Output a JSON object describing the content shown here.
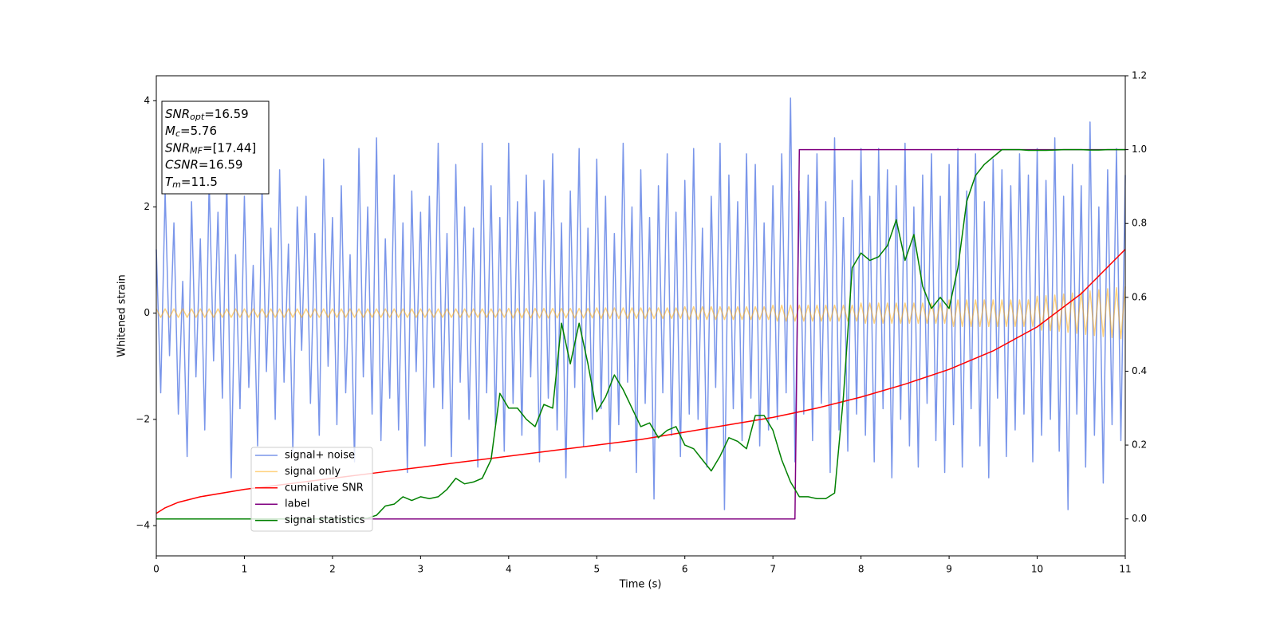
{
  "chart_data": {
    "type": "line",
    "xlabel": "Time (s)",
    "ylabel": "Whitened strain",
    "xlim": [
      0,
      11
    ],
    "xticks": [
      0,
      1,
      2,
      3,
      4,
      5,
      6,
      7,
      8,
      9,
      10,
      11
    ],
    "ylim": [
      -4.57,
      4.47
    ],
    "yticks": [
      {
        "value": -4,
        "label": "−4"
      },
      {
        "value": -2,
        "label": "−2"
      },
      0,
      2,
      4
    ],
    "y2lim": [
      -0.1,
      1.2
    ],
    "y2ticks": [
      {
        "value": 0,
        "label": "0.0"
      },
      0.2,
      0.4,
      0.6,
      0.8,
      {
        "value": 1,
        "label": "1.0"
      },
      1.2
    ],
    "legend": "best",
    "annotation": [
      {
        "text": "SNR",
        "sub": "opt",
        "tail": "=16.59"
      },
      {
        "text": "M",
        "sub": "c",
        "tail": "=5.76"
      },
      {
        "text": "SNR",
        "sub": "MF",
        "tail": "=[17.44]"
      },
      {
        "text": "CSNR",
        "tail": "=16.59"
      },
      {
        "text": "T",
        "sub": "m",
        "tail": "=11.5"
      }
    ],
    "x": [
      0,
      0.05,
      0.1,
      0.15,
      0.2,
      0.25,
      0.3,
      0.35,
      0.4,
      0.45,
      0.5,
      0.55,
      0.6,
      0.65,
      0.7,
      0.75,
      0.8,
      0.85,
      0.9,
      0.95,
      1,
      1.05,
      1.1,
      1.15,
      1.2,
      1.25,
      1.3,
      1.35,
      1.4,
      1.45,
      1.5,
      1.55,
      1.6,
      1.65,
      1.7,
      1.75,
      1.8,
      1.85,
      1.9,
      1.95,
      2,
      2.05,
      2.1,
      2.15,
      2.2,
      2.25,
      2.3,
      2.35,
      2.4,
      2.45,
      2.5,
      2.55,
      2.6,
      2.65,
      2.7,
      2.75,
      2.8,
      2.85,
      2.9,
      2.95,
      3,
      3.05,
      3.1,
      3.15,
      3.2,
      3.25,
      3.3,
      3.35,
      3.4,
      3.45,
      3.5,
      3.55,
      3.6,
      3.65,
      3.7,
      3.75,
      3.8,
      3.85,
      3.9,
      3.95,
      4,
      4.05,
      4.1,
      4.15,
      4.2,
      4.25,
      4.3,
      4.35,
      4.4,
      4.45,
      4.5,
      4.55,
      4.6,
      4.65,
      4.7,
      4.75,
      4.8,
      4.85,
      4.9,
      4.95,
      5,
      5.05,
      5.1,
      5.15,
      5.2,
      5.25,
      5.3,
      5.35,
      5.4,
      5.45,
      5.5,
      5.55,
      5.6,
      5.65,
      5.7,
      5.75,
      5.8,
      5.85,
      5.9,
      5.95,
      6,
      6.05,
      6.1,
      6.15,
      6.2,
      6.25,
      6.3,
      6.35,
      6.4,
      6.45,
      6.5,
      6.55,
      6.6,
      6.65,
      6.7,
      6.75,
      6.8,
      6.85,
      6.9,
      6.95,
      7,
      7.05,
      7.1,
      7.15,
      7.2,
      7.25,
      7.3,
      7.35,
      7.4,
      7.45,
      7.5,
      7.55,
      7.6,
      7.65,
      7.7,
      7.75,
      7.8,
      7.85,
      7.9,
      7.95,
      8,
      8.05,
      8.1,
      8.15,
      8.2,
      8.25,
      8.3,
      8.35,
      8.4,
      8.45,
      8.5,
      8.55,
      8.6,
      8.65,
      8.7,
      8.75,
      8.8,
      8.85,
      8.9,
      8.95,
      9,
      9.05,
      9.1,
      9.15,
      9.2,
      9.25,
      9.3,
      9.35,
      9.4,
      9.45,
      9.5,
      9.55,
      9.6,
      9.65,
      9.7,
      9.75,
      9.8,
      9.85,
      9.9,
      9.95,
      10,
      10.05,
      10.1,
      10.15,
      10.2,
      10.25,
      10.3,
      10.35,
      10.4,
      10.45,
      10.5,
      10.55,
      10.6,
      10.65,
      10.7,
      10.75,
      10.8,
      10.85,
      10.9,
      10.95,
      11
    ],
    "series": [
      {
        "name": "signal+ noise",
        "color": "#4169e1",
        "alpha": 0.7,
        "axis": "y",
        "values": [
          1.2,
          -1.5,
          2.3,
          -0.8,
          1.7,
          -1.9,
          0.6,
          -2.7,
          2.1,
          -1.2,
          1.4,
          -2.2,
          2.5,
          -0.9,
          1.9,
          -1.6,
          2.6,
          -3.1,
          1.1,
          -1.8,
          2.2,
          -1.4,
          0.9,
          -2.5,
          2.4,
          -1.1,
          1.6,
          -2.0,
          2.7,
          -1.3,
          1.3,
          -2.6,
          2.0,
          -0.7,
          2.2,
          -1.7,
          1.5,
          -2.3,
          2.9,
          -1.0,
          1.8,
          -2.1,
          2.4,
          -1.5,
          1.1,
          -2.8,
          3.1,
          -1.2,
          2.0,
          -1.9,
          3.3,
          -2.4,
          1.4,
          -1.6,
          2.6,
          -2.2,
          1.7,
          -3.0,
          2.3,
          -1.1,
          1.9,
          -2.5,
          2.2,
          -1.4,
          3.2,
          -1.8,
          1.5,
          -2.7,
          2.8,
          -1.3,
          2.0,
          -2.0,
          1.6,
          -2.9,
          3.2,
          -1.5,
          2.4,
          -2.1,
          1.8,
          -2.6,
          3.2,
          -1.7,
          2.1,
          -2.3,
          2.6,
          -1.2,
          1.9,
          -2.8,
          2.5,
          -1.6,
          3.0,
          -2.2,
          1.7,
          -3.1,
          2.3,
          -1.4,
          3.1,
          -2.5,
          1.6,
          -2.0,
          2.9,
          -1.8,
          2.2,
          -2.6,
          1.5,
          -2.1,
          3.2,
          -1.3,
          2.0,
          -3.0,
          2.7,
          -1.7,
          1.8,
          -3.5,
          2.4,
          -1.5,
          3.0,
          -2.3,
          1.9,
          -2.7,
          2.5,
          -1.9,
          3.1,
          -2.0,
          1.6,
          -2.9,
          2.2,
          -1.4,
          3.2,
          -3.7,
          2.6,
          -1.8,
          2.1,
          -2.4,
          3.0,
          -1.6,
          2.8,
          -2.5,
          1.7,
          -2.2,
          2.4,
          -2.0,
          3.0,
          -1.5,
          4.05,
          -2.8,
          2.3,
          -1.9,
          2.6,
          -2.4,
          3.0,
          -1.7,
          2.1,
          -3.0,
          3.3,
          -2.2,
          1.8,
          -2.6,
          2.5,
          -1.9,
          3.1,
          -2.3,
          2.2,
          -2.8,
          3.1,
          -1.8,
          2.7,
          -3.1,
          2.4,
          -2.0,
          3.2,
          -2.5,
          2.0,
          -2.9,
          2.6,
          -1.7,
          3.0,
          -2.4,
          2.2,
          -3.0,
          2.8,
          -2.1,
          3.1,
          -2.9,
          2.3,
          -1.8,
          3.0,
          -2.5,
          2.1,
          -3.1,
          2.9,
          -1.6,
          2.7,
          -2.7,
          2.4,
          -2.2,
          3.0,
          -1.9,
          2.6,
          -2.8,
          3.1,
          -2.3,
          2.5,
          -2.0,
          3.3,
          -2.6,
          2.2,
          -3.7,
          2.8,
          -1.9,
          2.4,
          -2.9,
          3.6,
          -2.3,
          2.0,
          -3.2,
          2.7,
          -2.1,
          3.1,
          -2.4,
          2.6
        ]
      },
      {
        "name": "signal only",
        "color": "#ffa500",
        "alpha": 0.5,
        "axis": "y",
        "values": [
          0.08,
          -0.08,
          0.08,
          -0.08,
          0.08,
          -0.08,
          0.08,
          -0.08,
          0.08,
          -0.08,
          0.08,
          -0.08,
          0.08,
          -0.08,
          0.08,
          -0.08,
          0.08,
          -0.08,
          0.08,
          -0.08,
          0.08,
          -0.08,
          0.08,
          -0.08,
          0.08,
          -0.08,
          0.08,
          -0.08,
          0.08,
          -0.08,
          0.08,
          -0.08,
          0.08,
          -0.08,
          0.08,
          -0.08,
          0.08,
          -0.08,
          0.08,
          -0.08,
          0.08,
          -0.08,
          0.08,
          -0.08,
          0.08,
          -0.08,
          0.08,
          -0.08,
          0.08,
          -0.08,
          0.08,
          -0.08,
          0.08,
          -0.08,
          0.08,
          -0.08,
          0.08,
          -0.08,
          0.08,
          -0.08,
          0.08,
          -0.08,
          0.08,
          -0.08,
          0.08,
          -0.08,
          0.08,
          -0.08,
          0.08,
          -0.08,
          0.08,
          -0.08,
          0.08,
          -0.08,
          0.08,
          -0.08,
          0.08,
          -0.08,
          0.08,
          -0.08,
          0.09,
          -0.09,
          0.09,
          -0.09,
          0.09,
          -0.09,
          0.09,
          -0.09,
          0.09,
          -0.09,
          0.09,
          -0.09,
          0.09,
          -0.09,
          0.09,
          -0.09,
          0.09,
          -0.09,
          0.09,
          -0.09,
          0.1,
          -0.1,
          0.1,
          -0.1,
          0.1,
          -0.1,
          0.1,
          -0.1,
          0.1,
          -0.1,
          0.1,
          -0.1,
          0.1,
          -0.1,
          0.1,
          -0.1,
          0.1,
          -0.1,
          0.1,
          -0.1,
          0.12,
          -0.12,
          0.12,
          -0.12,
          0.12,
          -0.12,
          0.12,
          -0.12,
          0.12,
          -0.12,
          0.12,
          -0.12,
          0.12,
          -0.12,
          0.12,
          -0.12,
          0.12,
          -0.12,
          0.12,
          -0.12,
          0.15,
          -0.15,
          0.15,
          -0.15,
          0.15,
          -0.15,
          0.15,
          -0.15,
          0.15,
          -0.15,
          0.15,
          -0.15,
          0.15,
          -0.15,
          0.15,
          -0.15,
          0.15,
          -0.15,
          0.15,
          -0.15,
          0.19,
          -0.19,
          0.19,
          -0.19,
          0.19,
          -0.19,
          0.19,
          -0.19,
          0.19,
          -0.19,
          0.19,
          -0.19,
          0.19,
          -0.19,
          0.19,
          -0.19,
          0.19,
          -0.19,
          0.19,
          -0.19,
          0.25,
          -0.25,
          0.25,
          -0.25,
          0.25,
          -0.25,
          0.25,
          -0.25,
          0.25,
          -0.25,
          0.25,
          -0.25,
          0.25,
          -0.25,
          0.25,
          -0.25,
          0.25,
          -0.25,
          0.25,
          -0.25,
          0.32,
          -0.32,
          0.33,
          -0.33,
          0.34,
          -0.34,
          0.36,
          -0.36,
          0.38,
          -0.38,
          0.4,
          -0.4,
          0.42,
          -0.42,
          0.44,
          -0.44,
          0.46,
          -0.46,
          0.48,
          -0.48,
          0.5
        ]
      },
      {
        "name": "cumilative SNR",
        "color": "#ff0000",
        "alpha": 1,
        "axis": "y2",
        "x": [
          0,
          0.1,
          0.25,
          0.5,
          1,
          1.5,
          2,
          2.5,
          3,
          3.5,
          4,
          4.5,
          5,
          5.5,
          6,
          6.5,
          7,
          7.5,
          8,
          8.5,
          9,
          9.5,
          10,
          10.5,
          11
        ],
        "values": [
          0.015,
          0.03,
          0.045,
          0.06,
          0.08,
          0.095,
          0.11,
          0.125,
          0.14,
          0.155,
          0.17,
          0.185,
          0.2,
          0.215,
          0.235,
          0.255,
          0.275,
          0.3,
          0.33,
          0.365,
          0.405,
          0.455,
          0.52,
          0.61,
          0.73
        ]
      },
      {
        "name": "label",
        "color": "#800080",
        "alpha": 1,
        "axis": "y2",
        "x": [
          0,
          7.25,
          7.3,
          11
        ],
        "values": [
          0,
          0,
          1,
          1
        ]
      },
      {
        "name": "signal statistics",
        "color": "#008000",
        "alpha": 1,
        "axis": "y2",
        "x": [
          0,
          0.1,
          0.2,
          0.3,
          0.4,
          0.5,
          0.6,
          0.7,
          0.8,
          0.9,
          1,
          1.1,
          1.2,
          1.3,
          1.4,
          1.5,
          1.6,
          1.7,
          1.8,
          1.9,
          2,
          2.1,
          2.2,
          2.3,
          2.4,
          2.5,
          2.6,
          2.7,
          2.8,
          2.9,
          3,
          3.1,
          3.2,
          3.3,
          3.4,
          3.5,
          3.6,
          3.7,
          3.8,
          3.9,
          4,
          4.1,
          4.2,
          4.3,
          4.4,
          4.5,
          4.6,
          4.7,
          4.8,
          4.9,
          5,
          5.1,
          5.2,
          5.3,
          5.4,
          5.5,
          5.6,
          5.7,
          5.8,
          5.9,
          6,
          6.1,
          6.2,
          6.3,
          6.4,
          6.5,
          6.6,
          6.7,
          6.8,
          6.9,
          7,
          7.1,
          7.2,
          7.3,
          7.4,
          7.5,
          7.6,
          7.7,
          7.8,
          7.9,
          8,
          8.1,
          8.2,
          8.3,
          8.4,
          8.5,
          8.6,
          8.7,
          8.8,
          8.9,
          9,
          9.1,
          9.2,
          9.3,
          9.4,
          9.5,
          9.6,
          9.7,
          9.8,
          9.9,
          10,
          10.1,
          10.2,
          10.3,
          10.4,
          10.5,
          10.6,
          10.7,
          10.8,
          10.9,
          11
        ],
        "values": [
          0,
          0,
          0,
          0,
          0,
          0,
          0,
          0,
          0,
          0,
          0,
          0,
          0,
          0,
          0,
          0,
          0,
          0,
          0,
          0,
          0,
          0,
          0,
          0,
          0.002,
          0.01,
          0.035,
          0.04,
          0.06,
          0.05,
          0.06,
          0.055,
          0.06,
          0.08,
          0.11,
          0.095,
          0.1,
          0.11,
          0.16,
          0.34,
          0.3,
          0.3,
          0.27,
          0.25,
          0.31,
          0.3,
          0.53,
          0.42,
          0.53,
          0.42,
          0.29,
          0.33,
          0.39,
          0.35,
          0.3,
          0.25,
          0.26,
          0.22,
          0.24,
          0.25,
          0.2,
          0.19,
          0.16,
          0.13,
          0.17,
          0.22,
          0.21,
          0.19,
          0.28,
          0.28,
          0.24,
          0.16,
          0.1,
          0.06,
          0.06,
          0.055,
          0.055,
          0.07,
          0.33,
          0.68,
          0.72,
          0.7,
          0.71,
          0.74,
          0.81,
          0.7,
          0.77,
          0.63,
          0.57,
          0.6,
          0.57,
          0.68,
          0.86,
          0.93,
          0.96,
          0.98,
          1.0,
          1.0,
          1.0,
          0.998,
          0.998,
          0.998,
          0.999,
          1.0,
          1.0,
          1.0,
          0.999,
          0.999,
          1.0,
          1.0,
          1.0
        ]
      }
    ]
  }
}
